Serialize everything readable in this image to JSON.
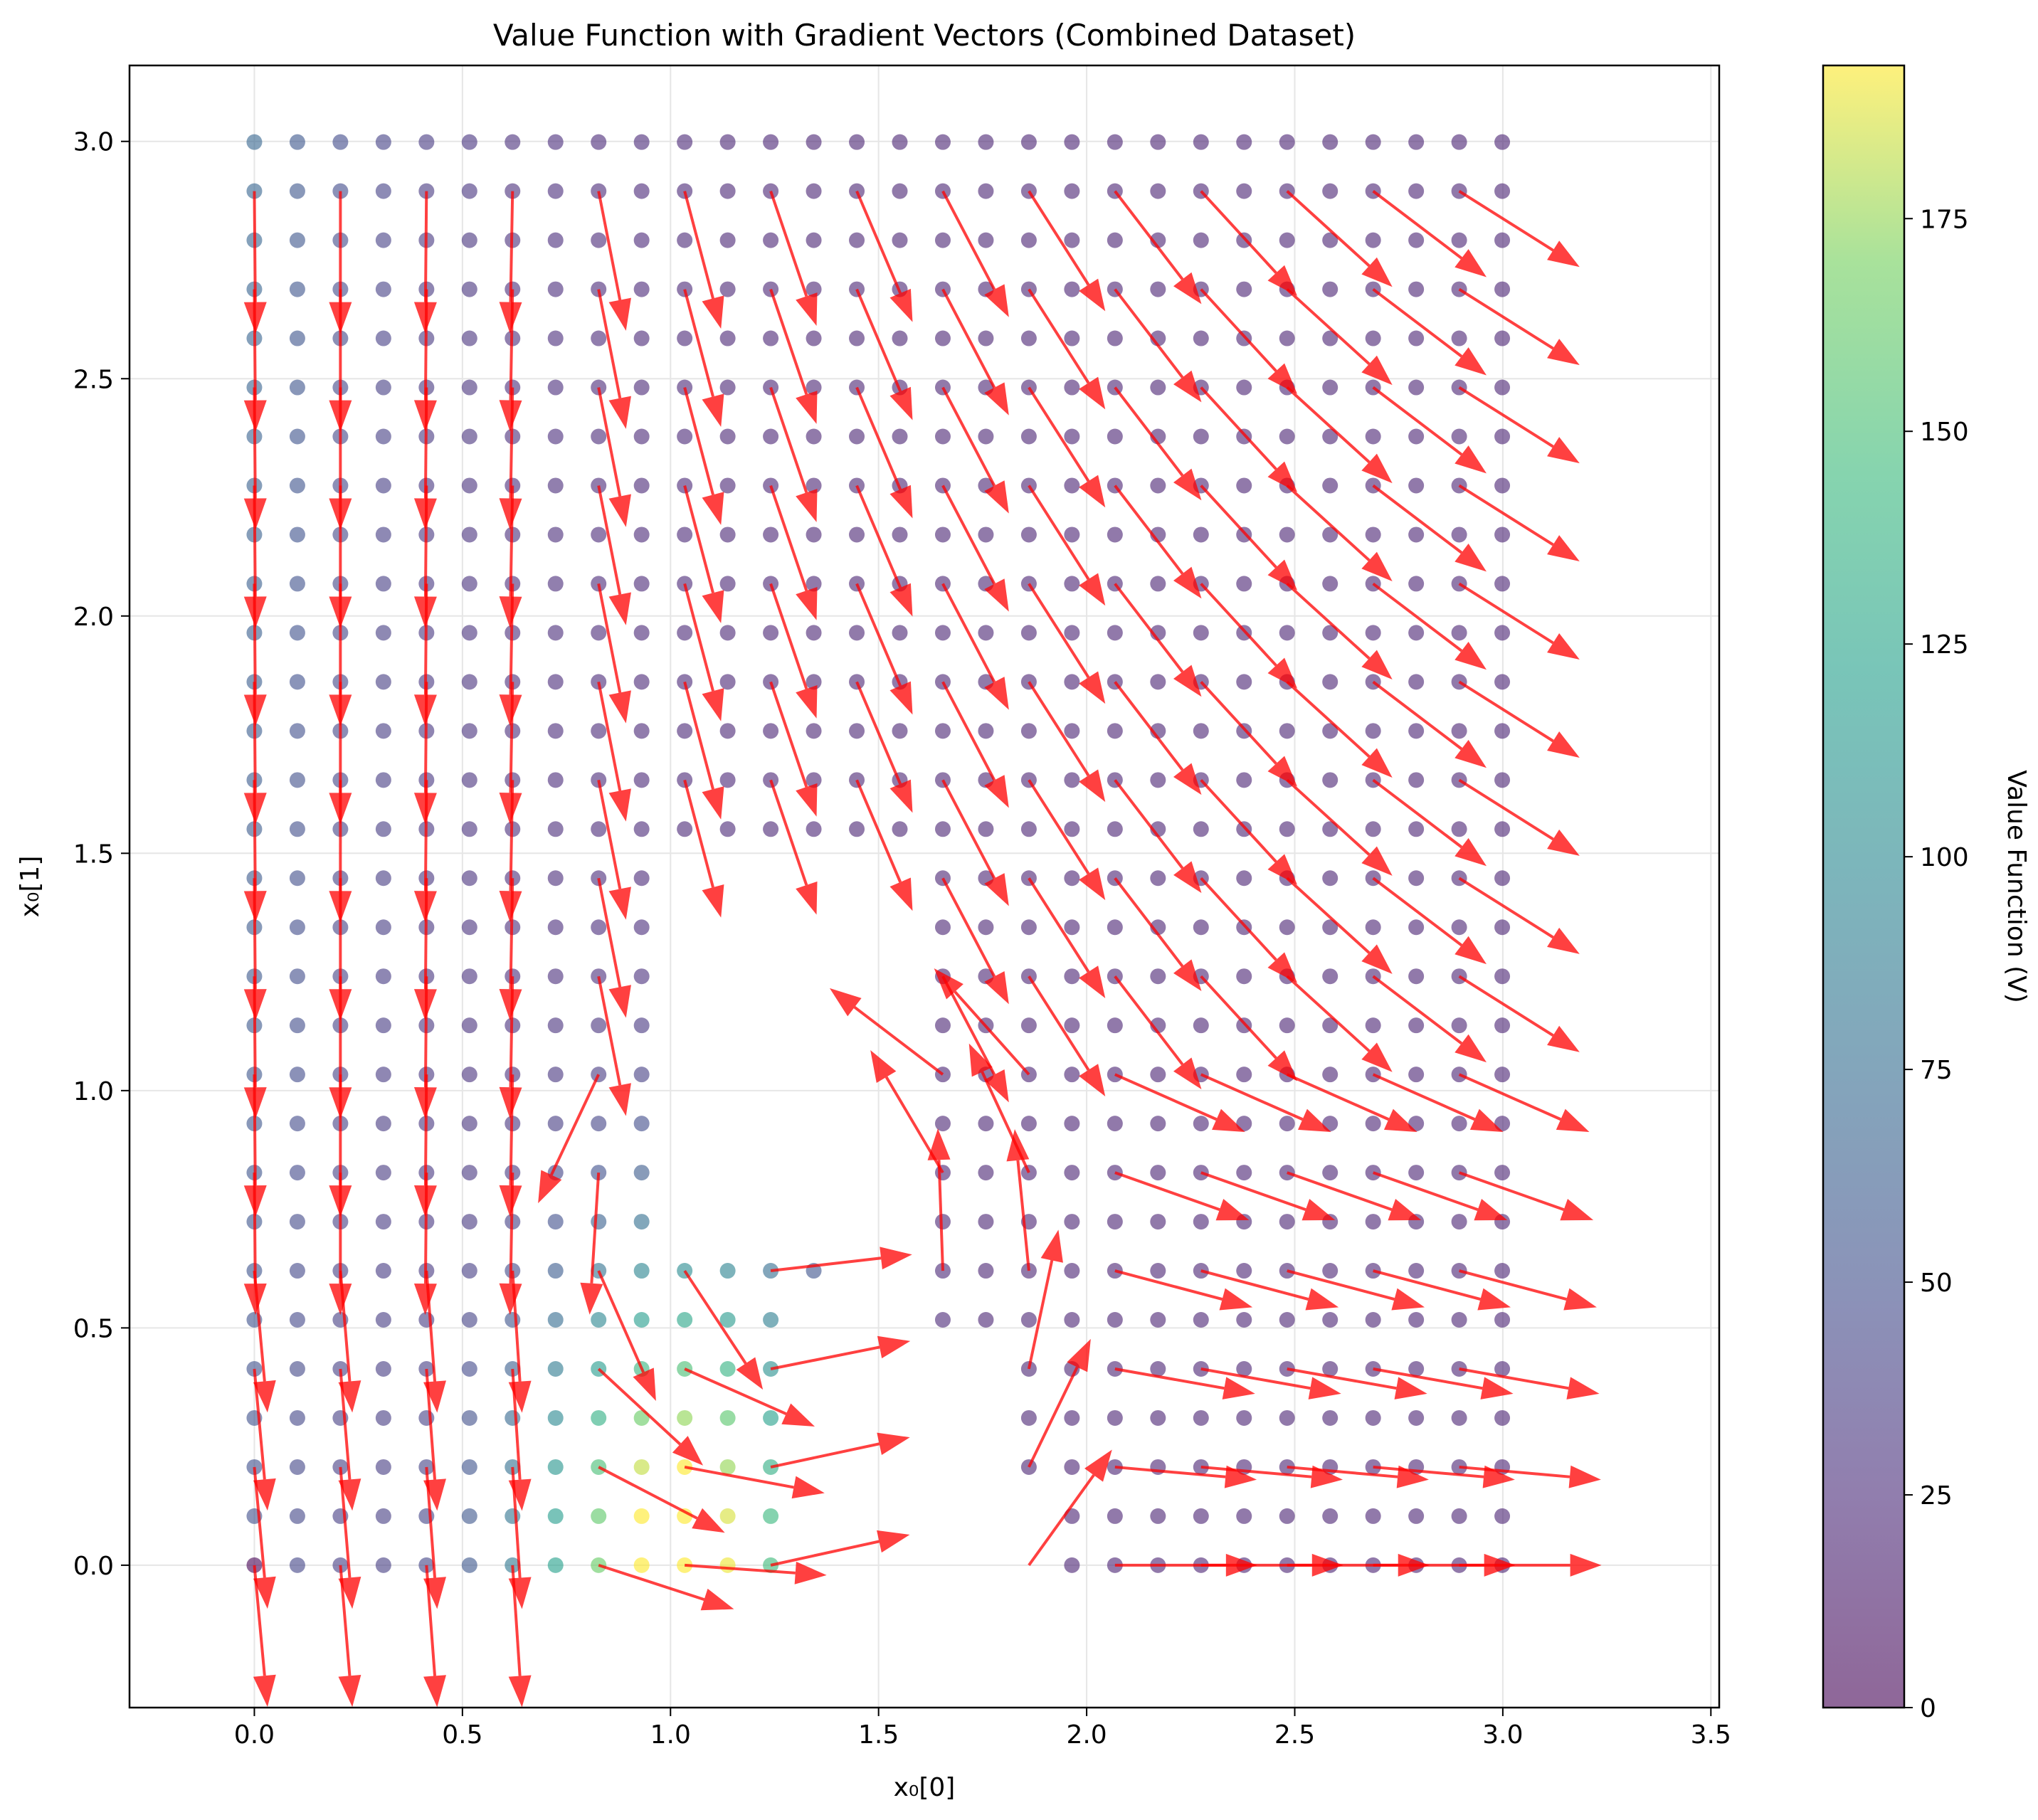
{
  "chart_data": {
    "type": "scatter",
    "title": "Value Function with Gradient Vectors (Combined Dataset)",
    "xlabel": "x₀[0]",
    "ylabel": "x₀[1]",
    "xlim": [
      -0.3,
      3.52
    ],
    "ylim": [
      -0.3,
      3.16
    ],
    "xticks": [
      "0.0",
      "0.5",
      "1.0",
      "1.5",
      "2.0",
      "2.5",
      "3.0",
      "3.5"
    ],
    "yticks": [
      "0.0",
      "0.5",
      "1.0",
      "1.5",
      "2.0",
      "2.5",
      "3.0"
    ],
    "grid": true,
    "colorbar": {
      "label": "Value Function (V)",
      "range": [
        0,
        193
      ],
      "ticks": [
        "0",
        "25",
        "50",
        "75",
        "100",
        "125",
        "150",
        "175"
      ],
      "colormap": "viridis",
      "alpha": 0.6
    },
    "grid_points": {
      "x_start": 0.0,
      "x_step": 0.1034,
      "x_count": 30,
      "y_start": 0.0,
      "y_step": 0.1034,
      "y_count": 30
    },
    "excluded_region": {
      "description": "points missing in lower-middle region",
      "rows": {
        "0": [
          13,
          18
        ],
        "1": [
          13,
          18
        ],
        "2": [
          13,
          17
        ],
        "3": [
          13,
          17
        ],
        "4": [
          13,
          17
        ],
        "5": [
          13,
          15
        ],
        "6": [
          14,
          15
        ],
        "7": [
          10,
          15
        ],
        "8": [
          10,
          15
        ],
        "9": [
          10,
          15
        ],
        "10": [
          10,
          15
        ],
        "11": [
          10,
          15
        ],
        "12": [
          10,
          15
        ],
        "13": [
          10,
          15
        ],
        "14": [
          10,
          15
        ]
      }
    },
    "value_profile_low_region": {
      "description": "yellow/green high-value region near x in [0.5,1.05], y in [0, 0.62]",
      "max_value": 190
    },
    "arrow_style": {
      "color": "#ff0000",
      "alpha": 0.75
    },
    "vectors_description": "gradient arrows drawn at every other grid point; mostly pointing down on left columns, down-right in the upper-right, rightward at bottom-right",
    "colors": {
      "arrow": "#ff0000",
      "grid": "#e6e6e6"
    }
  }
}
